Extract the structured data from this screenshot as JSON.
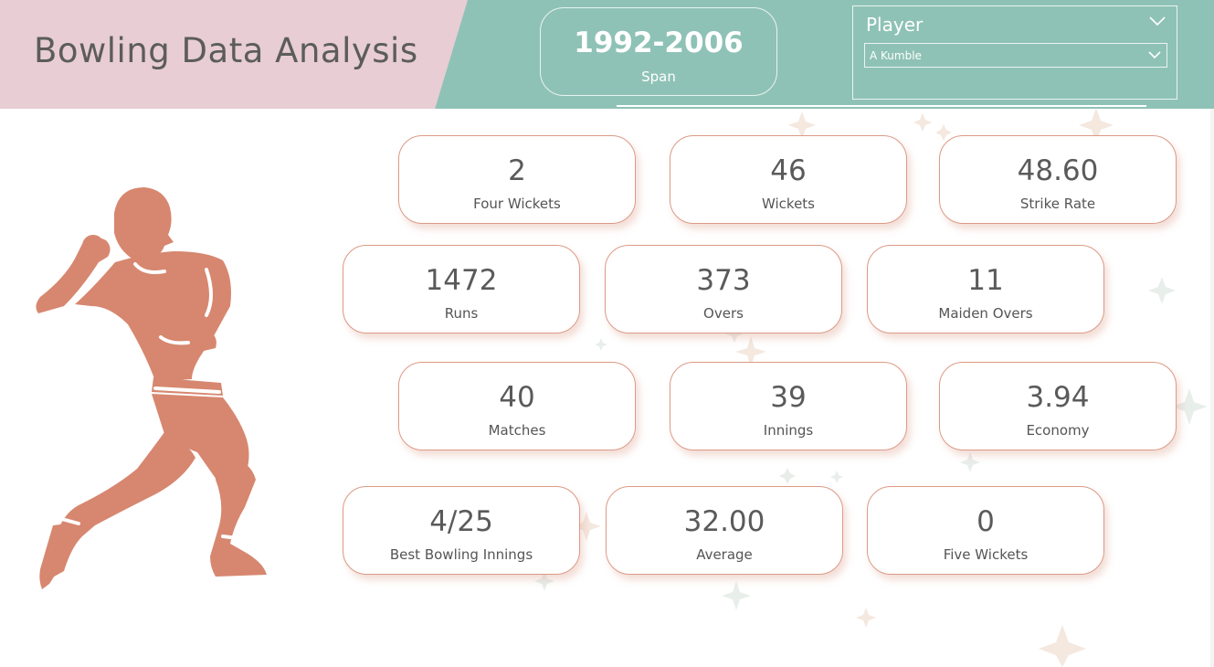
{
  "header": {
    "title": "Bowling Data Analysis",
    "span": {
      "value": "1992-2006",
      "label": "Span"
    },
    "player_slicer": {
      "title": "Player",
      "selected": "A Kumble",
      "chevron_icon": "chevron-down-icon"
    }
  },
  "kpis": {
    "four_wickets": {
      "value": "2",
      "label": "Four Wickets"
    },
    "wickets": {
      "value": "46",
      "label": "Wickets"
    },
    "strike_rate": {
      "value": "48.60",
      "label": "Strike Rate"
    },
    "runs": {
      "value": "1472",
      "label": "Runs"
    },
    "overs": {
      "value": "373",
      "label": "Overs"
    },
    "maiden_overs": {
      "value": "11",
      "label": "Maiden Overs"
    },
    "matches": {
      "value": "40",
      "label": "Matches"
    },
    "innings": {
      "value": "39",
      "label": "Innings"
    },
    "economy": {
      "value": "3.94",
      "label": "Economy"
    },
    "best_bowling_innings": {
      "value": "4/25",
      "label": "Best Bowling Innings"
    },
    "average": {
      "value": "32.00",
      "label": "Average"
    },
    "five_wickets": {
      "value": "0",
      "label": "Five Wickets"
    }
  },
  "colors": {
    "header_teal": "#8fc2b6",
    "title_pink": "#e8cdd4",
    "bowler_fill": "#d7876f",
    "card_border": "#dc9a86",
    "text_gray": "#5c5c5c"
  },
  "illustration": {
    "icon": "cricket-bowler-icon"
  }
}
